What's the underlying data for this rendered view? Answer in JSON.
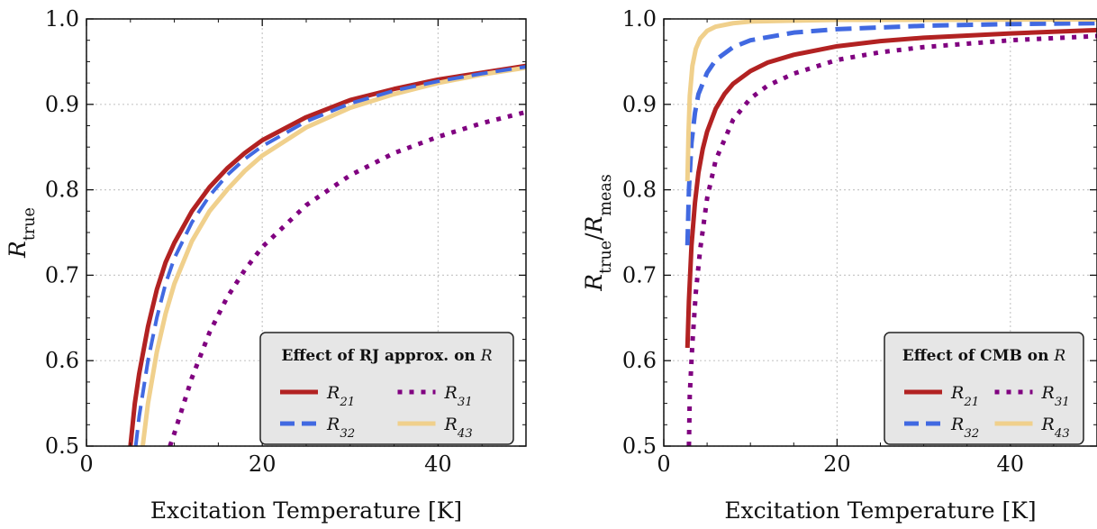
{
  "chart_data": [
    {
      "type": "line",
      "xlabel": "Excitation Temperature [K]",
      "ylabel_main": "R",
      "ylabel_sub": "true",
      "xlim": [
        0,
        50
      ],
      "ylim": [
        0.5,
        1.0
      ],
      "xticks": [
        0,
        20,
        40
      ],
      "yticks": [
        0.5,
        0.6,
        0.7,
        0.8,
        0.9,
        1.0
      ],
      "grid": true,
      "legend": {
        "title": "Effect of RJ approx. on R",
        "placement": "lower-right",
        "entries": [
          {
            "main": "R",
            "sub": "21",
            "color": "#b22222",
            "style": "solid"
          },
          {
            "main": "R",
            "sub": "31",
            "color": "#800080",
            "style": "dotted"
          },
          {
            "main": "R",
            "sub": "32",
            "color": "#4169e1",
            "style": "dashed"
          },
          {
            "main": "R",
            "sub": "43",
            "color": "#f0d08c",
            "style": "solid"
          }
        ]
      },
      "series": [
        {
          "name": "R21",
          "color": "#b22222",
          "style": "solid",
          "width": 5,
          "x": [
            5.0,
            5.5,
            6,
            7,
            8,
            9,
            10,
            12,
            14,
            16,
            18,
            20,
            25,
            30,
            35,
            40,
            45,
            50
          ],
          "y": [
            0.5,
            0.55,
            0.585,
            0.64,
            0.683,
            0.715,
            0.738,
            0.775,
            0.803,
            0.825,
            0.843,
            0.858,
            0.885,
            0.905,
            0.918,
            0.929,
            0.937,
            0.945
          ]
        },
        {
          "name": "R43",
          "color": "#f0d08c",
          "style": "solid",
          "width": 5,
          "x": [
            6.4,
            7,
            8,
            9,
            10,
            12,
            14,
            16,
            18,
            20,
            25,
            30,
            35,
            40,
            45,
            50
          ],
          "y": [
            0.5,
            0.55,
            0.61,
            0.655,
            0.69,
            0.74,
            0.775,
            0.8,
            0.822,
            0.84,
            0.873,
            0.896,
            0.912,
            0.925,
            0.935,
            0.943
          ]
        },
        {
          "name": "R32",
          "color": "#4169e1",
          "style": "dashed",
          "width": 4,
          "x": [
            5.6,
            6,
            7,
            8,
            9,
            10,
            12,
            14,
            16,
            18,
            20,
            25,
            30,
            35,
            40,
            45,
            50
          ],
          "y": [
            0.5,
            0.535,
            0.6,
            0.65,
            0.69,
            0.72,
            0.762,
            0.793,
            0.817,
            0.836,
            0.851,
            0.88,
            0.901,
            0.916,
            0.927,
            0.936,
            0.944
          ]
        },
        {
          "name": "R31",
          "color": "#800080",
          "style": "dotted",
          "width": 5,
          "x": [
            9.5,
            10,
            12,
            14,
            16,
            18,
            20,
            25,
            30,
            35,
            40,
            45,
            50
          ],
          "y": [
            0.5,
            0.515,
            0.58,
            0.633,
            0.674,
            0.706,
            0.733,
            0.782,
            0.817,
            0.843,
            0.862,
            0.878,
            0.891
          ]
        }
      ]
    },
    {
      "type": "line",
      "xlabel": "Excitation Temperature [K]",
      "ylabel_main": "R",
      "ylabel_sub": "true",
      "ylabel_sep": "/",
      "ylabel_main2": "R",
      "ylabel_sub2": "meas",
      "xlim": [
        0,
        50
      ],
      "ylim": [
        0.5,
        1.0
      ],
      "xticks": [
        0,
        20,
        40
      ],
      "yticks": [
        0.5,
        0.6,
        0.7,
        0.8,
        0.9,
        1.0
      ],
      "grid": true,
      "legend": {
        "title": "Effect of CMB on R",
        "placement": "lower-right",
        "entries": [
          {
            "main": "R",
            "sub": "21",
            "color": "#b22222",
            "style": "solid"
          },
          {
            "main": "R",
            "sub": "31",
            "color": "#800080",
            "style": "dotted"
          },
          {
            "main": "R",
            "sub": "32",
            "color": "#4169e1",
            "style": "dashed"
          },
          {
            "main": "R",
            "sub": "43",
            "color": "#f0d08c",
            "style": "solid"
          }
        ]
      },
      "series": [
        {
          "name": "R31",
          "color": "#800080",
          "style": "dotted",
          "width": 5,
          "x": [
            2.9,
            3.0,
            3.3,
            3.7,
            4.2,
            5,
            6,
            8,
            10,
            12,
            15,
            20,
            25,
            30,
            40,
            50
          ],
          "y": [
            0.5,
            0.56,
            0.62,
            0.68,
            0.73,
            0.79,
            0.835,
            0.882,
            0.907,
            0.922,
            0.936,
            0.952,
            0.961,
            0.967,
            0.975,
            0.98
          ]
        },
        {
          "name": "R21",
          "color": "#b22222",
          "style": "solid",
          "width": 5,
          "x": [
            2.73,
            2.9,
            3.2,
            3.6,
            4,
            4.5,
            5,
            6,
            7,
            8,
            10,
            12,
            15,
            20,
            25,
            30,
            40,
            50
          ],
          "y": [
            0.615,
            0.67,
            0.735,
            0.785,
            0.82,
            0.848,
            0.868,
            0.895,
            0.912,
            0.924,
            0.939,
            0.949,
            0.958,
            0.968,
            0.974,
            0.978,
            0.983,
            0.987
          ]
        },
        {
          "name": "R32",
          "color": "#4169e1",
          "style": "dashed",
          "width": 5,
          "x": [
            2.73,
            2.9,
            3.2,
            3.6,
            4,
            5,
            6,
            8,
            10,
            15,
            20,
            30,
            40,
            50
          ],
          "y": [
            0.735,
            0.8,
            0.855,
            0.89,
            0.912,
            0.937,
            0.952,
            0.967,
            0.975,
            0.984,
            0.988,
            0.992,
            0.994,
            0.995
          ]
        },
        {
          "name": "R43",
          "color": "#f0d08c",
          "style": "solid",
          "width": 5,
          "x": [
            2.73,
            2.85,
            3.0,
            3.3,
            3.7,
            4.2,
            5,
            6,
            8,
            10,
            15,
            20,
            30,
            50
          ],
          "y": [
            0.81,
            0.865,
            0.91,
            0.945,
            0.965,
            0.977,
            0.986,
            0.991,
            0.995,
            0.997,
            0.998,
            0.999,
            0.999,
            0.9995
          ]
        }
      ]
    }
  ]
}
